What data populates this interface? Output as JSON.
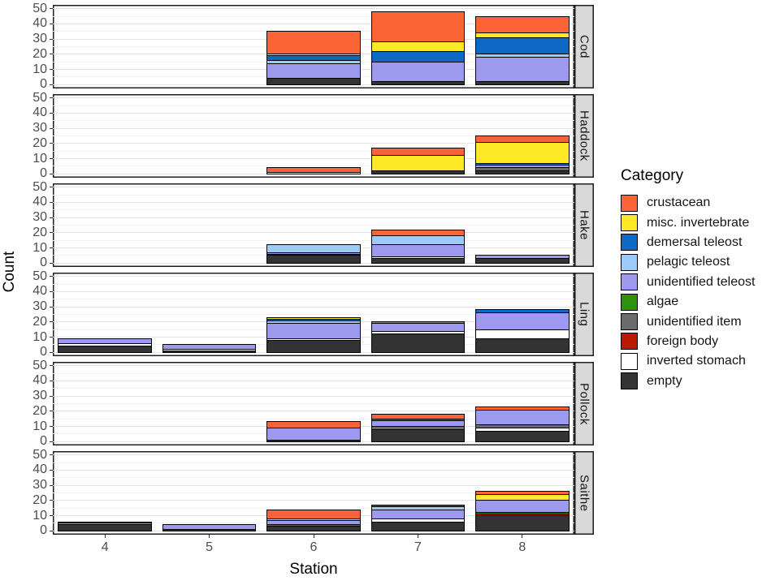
{
  "chart_data": {
    "type": "bar",
    "stacked": true,
    "xlabel": "Station",
    "ylabel": "Count",
    "x_categories": [
      "4",
      "5",
      "6",
      "7",
      "8"
    ],
    "ylim": [
      0,
      50
    ],
    "yticks": [
      0,
      10,
      20,
      30,
      40,
      50
    ],
    "yticks_minor": [
      5,
      15,
      25,
      35,
      45
    ],
    "grid": true,
    "legend_position": "right",
    "stack_order_bottom_to_top": [
      "empty",
      "inverted stomach",
      "foreign body",
      "unidentified item",
      "algae",
      "unidentified teleost",
      "pelagic teleost",
      "demersal teleost",
      "misc. invertebrate",
      "crustacean"
    ],
    "legend": {
      "title": "Category",
      "entries": [
        {
          "label": "crustacean",
          "color": "#fa6437"
        },
        {
          "label": "misc. invertebrate",
          "color": "#ffe926"
        },
        {
          "label": "demersal teleost",
          "color": "#0d69c4"
        },
        {
          "label": "pelagic teleost",
          "color": "#9ccbf8"
        },
        {
          "label": "unidentified teleost",
          "color": "#9c99ef"
        },
        {
          "label": "algae",
          "color": "#2d930c"
        },
        {
          "label": "unidentified item",
          "color": "#6b6b6b"
        },
        {
          "label": "foreign body",
          "color": "#bb1a01"
        },
        {
          "label": "inverted stomach",
          "color": "#ffffff"
        },
        {
          "label": "empty",
          "color": "#333333"
        }
      ]
    },
    "facets": [
      {
        "name": "Cod",
        "bars": [
          {
            "station": "4",
            "segments": {}
          },
          {
            "station": "5",
            "segments": {}
          },
          {
            "station": "6",
            "segments": {
              "empty": 4,
              "unidentified teleost": 10,
              "pelagic teleost": 2,
              "demersal teleost": 3,
              "misc. invertebrate": 1,
              "crustacean": 15
            }
          },
          {
            "station": "7",
            "segments": {
              "empty": 2,
              "unidentified teleost": 13,
              "demersal teleost": 7,
              "misc. invertebrate": 6,
              "crustacean": 20
            }
          },
          {
            "station": "8",
            "segments": {
              "empty": 2,
              "unidentified teleost": 16,
              "pelagic teleost": 2,
              "demersal teleost": 11,
              "misc. invertebrate": 3,
              "crustacean": 11
            }
          }
        ]
      },
      {
        "name": "Haddock",
        "bars": [
          {
            "station": "4",
            "segments": {}
          },
          {
            "station": "5",
            "segments": {}
          },
          {
            "station": "6",
            "segments": {
              "misc. invertebrate": 1,
              "crustacean": 3
            }
          },
          {
            "station": "7",
            "segments": {
              "empty": 2,
              "misc. invertebrate": 10,
              "crustacean": 5
            }
          },
          {
            "station": "8",
            "segments": {
              "empty": 2,
              "unidentified item": 2,
              "unidentified teleost": 2,
              "demersal teleost": 1,
              "misc. invertebrate": 14,
              "crustacean": 4
            }
          }
        ]
      },
      {
        "name": "Hake",
        "bars": [
          {
            "station": "4",
            "segments": {}
          },
          {
            "station": "5",
            "segments": {}
          },
          {
            "station": "6",
            "segments": {
              "empty": 5,
              "inverted stomach": 1,
              "unidentified teleost": 1,
              "pelagic teleost": 5
            }
          },
          {
            "station": "7",
            "segments": {
              "empty": 3,
              "inverted stomach": 1,
              "unidentified teleost": 8,
              "pelagic teleost": 6,
              "crustacean": 4
            }
          },
          {
            "station": "8",
            "segments": {
              "empty": 3,
              "unidentified teleost": 2
            }
          }
        ]
      },
      {
        "name": "Ling",
        "bars": [
          {
            "station": "4",
            "segments": {
              "empty": 4,
              "inverted stomach": 2,
              "unidentified teleost": 3
            }
          },
          {
            "station": "5",
            "segments": {
              "empty": 1,
              "inverted stomach": 1,
              "unidentified teleost": 3
            }
          },
          {
            "station": "6",
            "segments": {
              "empty": 8,
              "inverted stomach": 1,
              "unidentified teleost": 10,
              "pelagic teleost": 2,
              "demersal teleost": 1,
              "misc. invertebrate": 1
            }
          },
          {
            "station": "7",
            "segments": {
              "empty": 12,
              "inverted stomach": 2,
              "unidentified teleost": 5,
              "crustacean": 1
            }
          },
          {
            "station": "8",
            "segments": {
              "empty": 9,
              "inverted stomach": 6,
              "unidentified teleost": 11,
              "demersal teleost": 2
            }
          }
        ]
      },
      {
        "name": "Pollock",
        "bars": [
          {
            "station": "4",
            "segments": {}
          },
          {
            "station": "5",
            "segments": {}
          },
          {
            "station": "6",
            "segments": {
              "empty": 1,
              "unidentified teleost": 8,
              "crustacean": 4
            }
          },
          {
            "station": "7",
            "segments": {
              "empty": 8,
              "unidentified item": 2,
              "unidentified teleost": 4,
              "demersal teleost": 1,
              "crustacean": 3
            }
          },
          {
            "station": "8",
            "segments": {
              "empty": 7,
              "inverted stomach": 2,
              "unidentified item": 2,
              "unidentified teleost": 10,
              "crustacean": 2
            }
          }
        ]
      },
      {
        "name": "Saithe",
        "bars": [
          {
            "station": "4",
            "segments": {
              "empty": 4,
              "unidentified teleost": 1,
              "demersal teleost": 1
            }
          },
          {
            "station": "5",
            "segments": {
              "empty": 1,
              "unidentified teleost": 3
            }
          },
          {
            "station": "6",
            "segments": {
              "empty": 3,
              "algae": 1,
              "unidentified teleost": 3,
              "pelagic teleost": 1,
              "crustacean": 6
            }
          },
          {
            "station": "7",
            "segments": {
              "empty": 6,
              "inverted stomach": 2,
              "unidentified teleost": 6,
              "pelagic teleost": 2,
              "demersal teleost": 1
            }
          },
          {
            "station": "8",
            "segments": {
              "empty": 10,
              "foreign body": 1,
              "algae": 1,
              "unidentified teleost": 8,
              "misc. invertebrate": 4,
              "crustacean": 2
            }
          }
        ]
      }
    ]
  }
}
